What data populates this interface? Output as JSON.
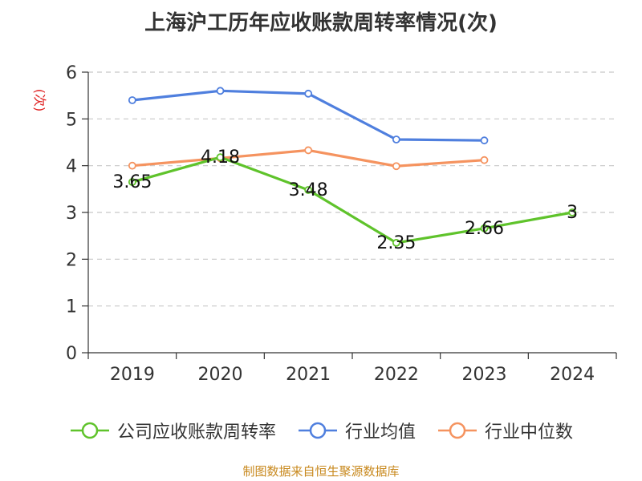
{
  "chart_data": {
    "type": "line",
    "title": "上海沪工历年应收账款周转率情况(次)",
    "ylabel": "(次)",
    "ylim": [
      0,
      6
    ],
    "yticks": [
      "0",
      "1",
      "2",
      "3",
      "4",
      "5",
      "6"
    ],
    "categories": [
      "2019",
      "2020",
      "2021",
      "2022",
      "2023",
      "2024"
    ],
    "grid": true,
    "legend_position": "bottom",
    "series": [
      {
        "name": "公司应收账款周转率",
        "color": "#5fc32b",
        "labeled": true,
        "values": [
          3.65,
          4.18,
          3.48,
          2.35,
          2.66,
          3
        ],
        "labels": [
          "3.65",
          "4.18",
          "3.48",
          "2.35",
          "2.66",
          "3"
        ]
      },
      {
        "name": "行业均值",
        "color": "#4f7fde",
        "labeled": false,
        "values": [
          5.4,
          5.6,
          5.54,
          4.56,
          4.54,
          null
        ]
      },
      {
        "name": "行业中位数",
        "color": "#f5935f",
        "labeled": false,
        "values": [
          4.0,
          4.16,
          4.33,
          3.99,
          4.12,
          null
        ]
      }
    ],
    "source": "制图数据来自恒生聚源数据库"
  }
}
